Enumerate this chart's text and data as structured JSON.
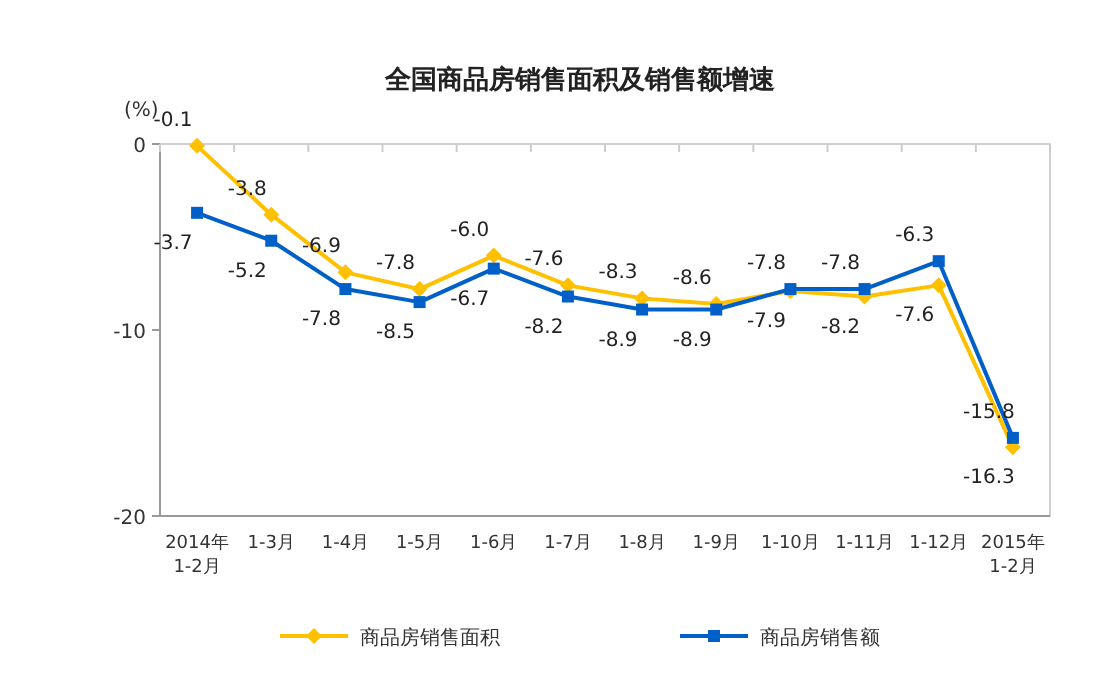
{
  "chart_data": {
    "type": "line",
    "title": "全国商品房销售面积及销售额增速",
    "ylabel": "(%)",
    "categories": [
      "2014年\n1-2月",
      "1-3月",
      "1-4月",
      "1-5月",
      "1-6月",
      "1-7月",
      "1-8月",
      "1-9月",
      "1-10月",
      "1-11月",
      "1-12月",
      "2015年\n1-2月"
    ],
    "series": [
      {
        "name": "商品房销售面积",
        "color": "#ffc000",
        "marker": "diamond",
        "values": [
          -0.1,
          -3.8,
          -6.9,
          -7.8,
          -6.0,
          -7.6,
          -8.3,
          -8.6,
          -7.9,
          -8.2,
          -7.6,
          -16.3
        ],
        "value_labels": [
          "-0.1",
          "-3.8",
          "-6.9",
          "-7.8",
          "-6.0",
          "-7.6",
          "-8.3",
          "-8.6",
          "-7.9",
          "-8.2",
          "-7.6",
          "-16.3"
        ]
      },
      {
        "name": "商品房销售额",
        "color": "#0060c8",
        "marker": "square",
        "values": [
          -3.7,
          -5.2,
          -7.8,
          -8.5,
          -6.7,
          -8.2,
          -8.9,
          -8.9,
          -7.8,
          -7.8,
          -6.3,
          -15.8
        ],
        "value_labels": [
          "-3.7",
          "-5.2",
          "-7.8",
          "-8.5",
          "-6.7",
          "-8.2",
          "-8.9",
          "-8.9",
          "-7.8",
          "-7.8",
          "-6.3",
          "-15.8"
        ]
      }
    ],
    "ylim": [
      -20,
      0
    ],
    "yticks": [
      0,
      -10,
      -20
    ],
    "grid": false,
    "legend": "bottom"
  }
}
